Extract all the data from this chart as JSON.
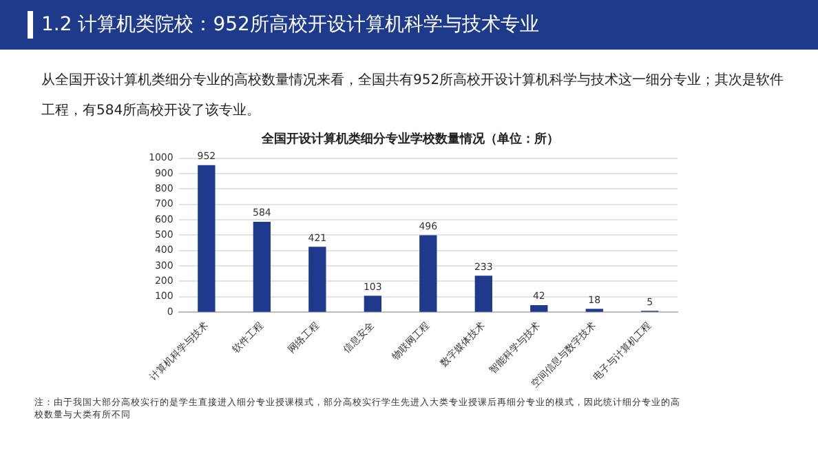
{
  "chart_data": {
    "type": "bar",
    "title": "全国开设计算机类细分专业学校数量情况（单位：所）",
    "categories": [
      "计算机科学与技术",
      "软件工程",
      "网络工程",
      "信息安全",
      "物联网工程",
      "数字媒体技术",
      "智能科学与技术",
      "空间信息与数字技术",
      "电子与计算机工程"
    ],
    "values": [
      952,
      584,
      421,
      103,
      496,
      233,
      42,
      18,
      5
    ],
    "color": "#1f3a8c",
    "ylim": [
      0,
      1000
    ],
    "yticks": [
      0,
      100,
      200,
      300,
      400,
      500,
      600,
      700,
      800,
      900,
      1000
    ],
    "grid": "y",
    "data_labels": true,
    "annotations": [
      "1.2 计算机类院校：952所高校开设计算机科学与技术专业",
      "从全国开设计算机类细分专业的高校数量情况来看，全国共有952所高校开设计算机科学与技术这一细分专业；其次是软件工程，有584所高校开设了该专业。",
      "注：由于我国大部分高校实行的是学生直接进入细分专业授课模式，部分高校实行学生先进入大类专业授课后再细分专业的模式，因此统计细分专业的高校数量与大类有所不同"
    ]
  }
}
